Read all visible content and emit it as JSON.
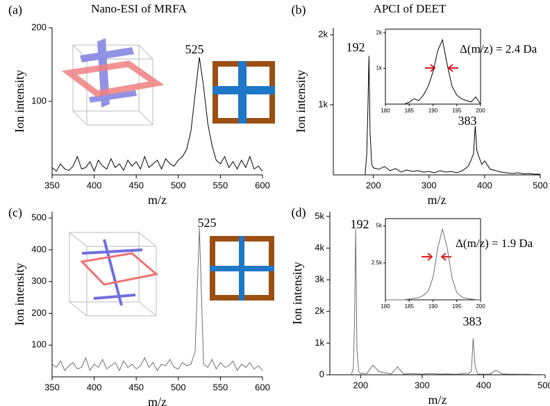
{
  "chart_data": [
    {
      "type": "line",
      "label": "(a)",
      "title": "Nano-ESI of MRFA",
      "xlabel": "m/z",
      "ylabel": "Ion intensity",
      "color": "#000000",
      "annotations": [
        "525"
      ],
      "x": [
        350,
        355,
        360,
        365,
        370,
        375,
        380,
        385,
        390,
        395,
        400,
        405,
        410,
        415,
        420,
        425,
        430,
        435,
        440,
        445,
        450,
        455,
        460,
        465,
        470,
        475,
        480,
        485,
        490,
        495,
        500,
        505,
        510,
        515,
        520,
        525,
        530,
        535,
        540,
        545,
        550,
        555,
        560,
        565,
        570,
        575,
        580,
        585,
        590,
        595,
        600
      ],
      "values": [
        10,
        5,
        15,
        8,
        6,
        12,
        25,
        8,
        10,
        18,
        5,
        20,
        12,
        8,
        22,
        10,
        15,
        6,
        20,
        12,
        18,
        8,
        25,
        10,
        15,
        20,
        8,
        22,
        15,
        12,
        20,
        25,
        35,
        60,
        110,
        160,
        120,
        70,
        40,
        20,
        15,
        25,
        10,
        18,
        8,
        20,
        10,
        25,
        8,
        12,
        5
      ],
      "xlim": [
        350,
        600
      ],
      "xticks": [
        350,
        400,
        450,
        500,
        550,
        600
      ],
      "ylim": [
        0,
        200
      ],
      "yticks": [
        100,
        200
      ]
    },
    {
      "type": "line",
      "label": "(b)",
      "title": "APCI of DEET",
      "xlabel": "m/z",
      "ylabel": "Ion intensity",
      "color": "#000000",
      "annotations": [
        "192",
        "383",
        "Δ(m/z) = 2.4 Da"
      ],
      "x": [
        185,
        188,
        190,
        192,
        194,
        197,
        200,
        210,
        220,
        230,
        240,
        250,
        260,
        270,
        280,
        290,
        300,
        310,
        320,
        330,
        340,
        350,
        360,
        370,
        375,
        380,
        383,
        386,
        390,
        395,
        400,
        410,
        420,
        430,
        440,
        450,
        460,
        470,
        480,
        490,
        500
      ],
      "values": [
        0,
        300,
        900,
        1700,
        600,
        150,
        100,
        80,
        120,
        60,
        90,
        40,
        70,
        50,
        60,
        40,
        50,
        30,
        60,
        40,
        50,
        30,
        60,
        120,
        200,
        300,
        700,
        350,
        250,
        150,
        200,
        80,
        60,
        40,
        30,
        20,
        30,
        15,
        20,
        10,
        10
      ],
      "xlim": [
        128,
        500
      ],
      "xticks": [
        200,
        300,
        400,
        500
      ],
      "ylim": [
        0,
        2100
      ],
      "yticks": [
        {
          "value": 1000,
          "label": "1k"
        },
        {
          "value": 2000,
          "label": "2k"
        }
      ]
    },
    {
      "type": "line",
      "color": "#000000",
      "x": [
        180,
        181,
        182,
        183,
        184,
        185,
        186,
        187,
        188,
        189,
        190,
        191,
        192,
        193,
        194,
        195,
        196,
        197,
        198,
        199,
        200
      ],
      "values": [
        0,
        0,
        0,
        0,
        0,
        50,
        150,
        100,
        250,
        500,
        900,
        1500,
        1800,
        1100,
        500,
        250,
        150,
        100,
        60,
        200,
        0
      ],
      "xlim": [
        180,
        200
      ],
      "xticks": [
        180,
        185,
        190,
        195,
        200
      ],
      "ylim": [
        0,
        2100
      ],
      "yticks": [
        {
          "value": 1000,
          "label": "1k"
        },
        {
          "value": 2000,
          "label": "2k"
        }
      ]
    },
    {
      "type": "line",
      "label": "(c)",
      "xlabel": "m/z",
      "ylabel": "Ion intensity",
      "color": "#6e6e6e",
      "annotations": [
        "525"
      ],
      "x": [
        350,
        355,
        360,
        365,
        370,
        375,
        380,
        385,
        390,
        395,
        400,
        405,
        410,
        415,
        420,
        425,
        430,
        435,
        440,
        445,
        450,
        455,
        460,
        465,
        470,
        475,
        480,
        485,
        490,
        495,
        500,
        505,
        510,
        515,
        520,
        525,
        530,
        535,
        540,
        545,
        550,
        555,
        560,
        565,
        570,
        575,
        580,
        585,
        590,
        595,
        600
      ],
      "values": [
        40,
        30,
        50,
        20,
        35,
        45,
        25,
        30,
        60,
        20,
        40,
        30,
        55,
        25,
        35,
        45,
        20,
        50,
        30,
        40,
        25,
        35,
        60,
        30,
        45,
        20,
        40,
        35,
        55,
        30,
        25,
        45,
        35,
        40,
        80,
        470,
        40,
        30,
        55,
        25,
        45,
        30,
        35,
        50,
        20,
        40,
        30,
        45,
        25,
        35,
        20
      ],
      "xlim": [
        350,
        600
      ],
      "xticks": [
        350,
        400,
        450,
        500,
        550,
        600
      ],
      "ylim": [
        0,
        520
      ],
      "yticks": [
        100,
        200,
        300,
        400,
        500
      ]
    },
    {
      "type": "line",
      "label": "(d)",
      "xlabel": "m/z",
      "ylabel": "Ion intensity",
      "color": "#6e6e6e",
      "annotations": [
        "192",
        "383",
        "Δ(m/z) = 1.9 Da"
      ],
      "x": [
        185,
        188,
        190,
        192,
        194,
        197,
        200,
        210,
        220,
        230,
        240,
        250,
        260,
        270,
        280,
        290,
        300,
        310,
        320,
        330,
        340,
        350,
        360,
        370,
        375,
        380,
        383,
        386,
        390,
        395,
        400,
        410,
        420,
        430,
        440,
        450,
        460,
        470,
        480,
        490,
        500
      ],
      "values": [
        0,
        200,
        1500,
        4600,
        800,
        100,
        50,
        40,
        300,
        100,
        60,
        30,
        250,
        20,
        40,
        30,
        20,
        40,
        30,
        20,
        30,
        20,
        20,
        50,
        40,
        100,
        1150,
        300,
        30,
        20,
        20,
        20,
        150,
        30,
        20,
        20,
        15,
        20,
        10,
        10,
        5
      ],
      "xlim": [
        150,
        500
      ],
      "xticks": [
        200,
        300,
        400,
        500
      ],
      "ylim": [
        0,
        5150
      ],
      "yticks": [
        0,
        {
          "value": 1000,
          "label": "1k"
        },
        {
          "value": 2000,
          "label": "2k"
        },
        {
          "value": 3000,
          "label": "3k"
        },
        {
          "value": 4000,
          "label": "4k"
        },
        {
          "value": 5000,
          "label": "5k"
        }
      ]
    },
    {
      "type": "line",
      "color": "#6e6e6e",
      "x": [
        180,
        181,
        182,
        183,
        184,
        185,
        186,
        187,
        188,
        189,
        190,
        191,
        192,
        193,
        194,
        195,
        196,
        197,
        198,
        199,
        200
      ],
      "values": [
        0,
        0,
        0,
        0,
        0,
        50,
        100,
        150,
        300,
        600,
        1500,
        3500,
        4800,
        3500,
        1500,
        500,
        200,
        100,
        50,
        20,
        0
      ],
      "xlim": [
        180,
        200
      ],
      "xticks": [
        180,
        185,
        190,
        195,
        200
      ],
      "ylim": [
        0,
        5500
      ],
      "yticks": [
        {
          "value": 2500,
          "label": "2.5k"
        },
        {
          "value": 5000,
          "label": "5k"
        }
      ]
    }
  ]
}
